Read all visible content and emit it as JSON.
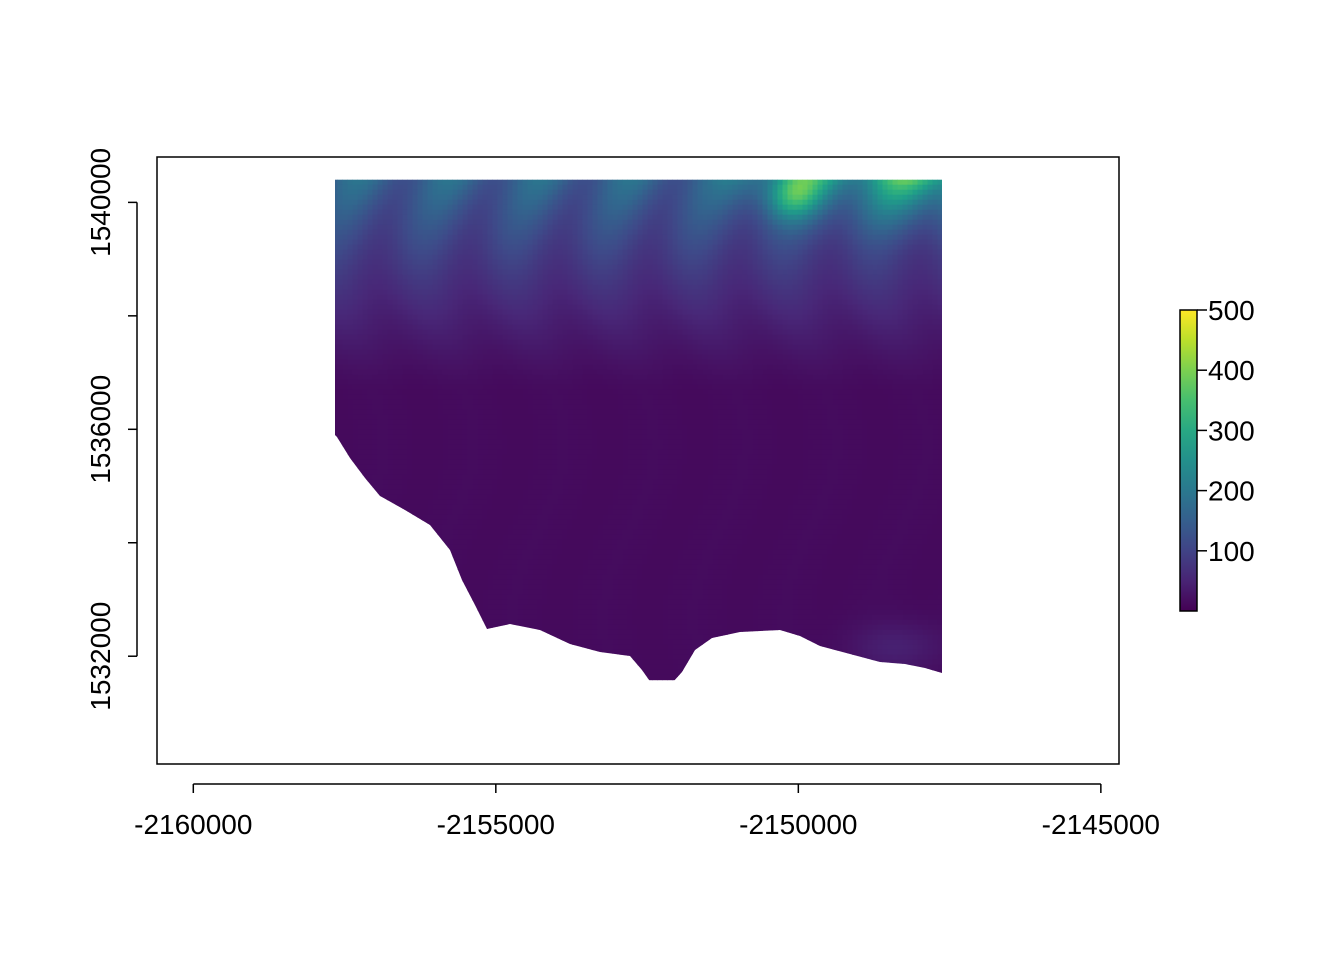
{
  "chart_data": {
    "type": "heatmap",
    "title": "",
    "xlabel": "",
    "ylabel": "",
    "xlim": [
      -2160600,
      -2144700
    ],
    "ylim": [
      1530100,
      1540800
    ],
    "x_ticks": [
      -2160000,
      -2155000,
      -2150000,
      -2145000
    ],
    "x_tick_labels": [
      "-2160000",
      "-2155000",
      "-2150000",
      "-2145000"
    ],
    "y_ticks": [
      1532000,
      1534000,
      1536000,
      1538000,
      1540000
    ],
    "y_tick_labels": [
      "1532000",
      "",
      "1536000",
      "",
      "1540000"
    ],
    "raster_extent": {
      "xmin": -2157700,
      "xmax": -2147700,
      "ymin": 1531600,
      "ymax": 1540400
    },
    "colorbar": {
      "palette": "viridis",
      "range": [
        0,
        500
      ],
      "ticks": [
        100,
        200,
        300,
        400,
        500
      ],
      "tick_labels": [
        "100",
        "200",
        "300",
        "400",
        "500"
      ]
    },
    "colors": [
      "#440154",
      "#482878",
      "#3E4A89",
      "#31688E",
      "#26828E",
      "#1F9E89",
      "#35B779",
      "#6DCD59",
      "#B4DE2C",
      "#FDE725"
    ]
  }
}
